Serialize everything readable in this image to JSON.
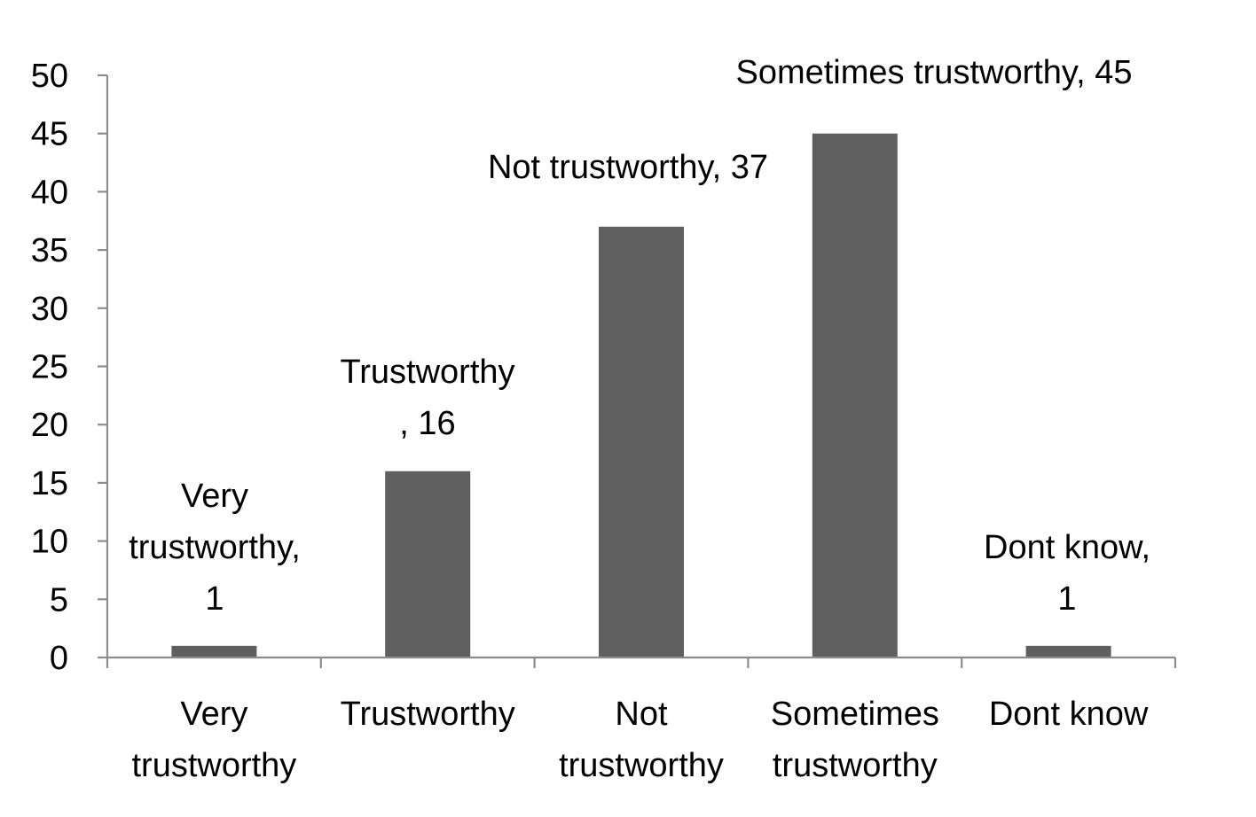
{
  "chart_data": {
    "type": "bar",
    "title": "",
    "xlabel": "",
    "ylabel": "",
    "categories": [
      [
        "Very",
        "trustworthy"
      ],
      [
        "Trustworthy"
      ],
      [
        "Not",
        "trustworthy"
      ],
      [
        "Sometimes",
        "trustworthy"
      ],
      [
        "Dont know"
      ]
    ],
    "values": [
      1,
      16,
      37,
      45,
      1
    ],
    "data_labels": [
      [
        "Very",
        "trustworthy,",
        "1"
      ],
      [
        "Trustworthy",
        ", 16"
      ],
      [
        "Not trustworthy, 37"
      ],
      [
        "Sometimes trustworthy, 45"
      ],
      [
        "Dont know,",
        "1"
      ]
    ],
    "ylim": [
      0,
      50
    ],
    "yticks": [
      "0",
      "5",
      "10",
      "15",
      "20",
      "25",
      "30",
      "35",
      "40",
      "45",
      "50"
    ],
    "grid": false,
    "legend": "none",
    "bar_color": "#5f5f5f",
    "axis_color": "#8c8c8c"
  }
}
